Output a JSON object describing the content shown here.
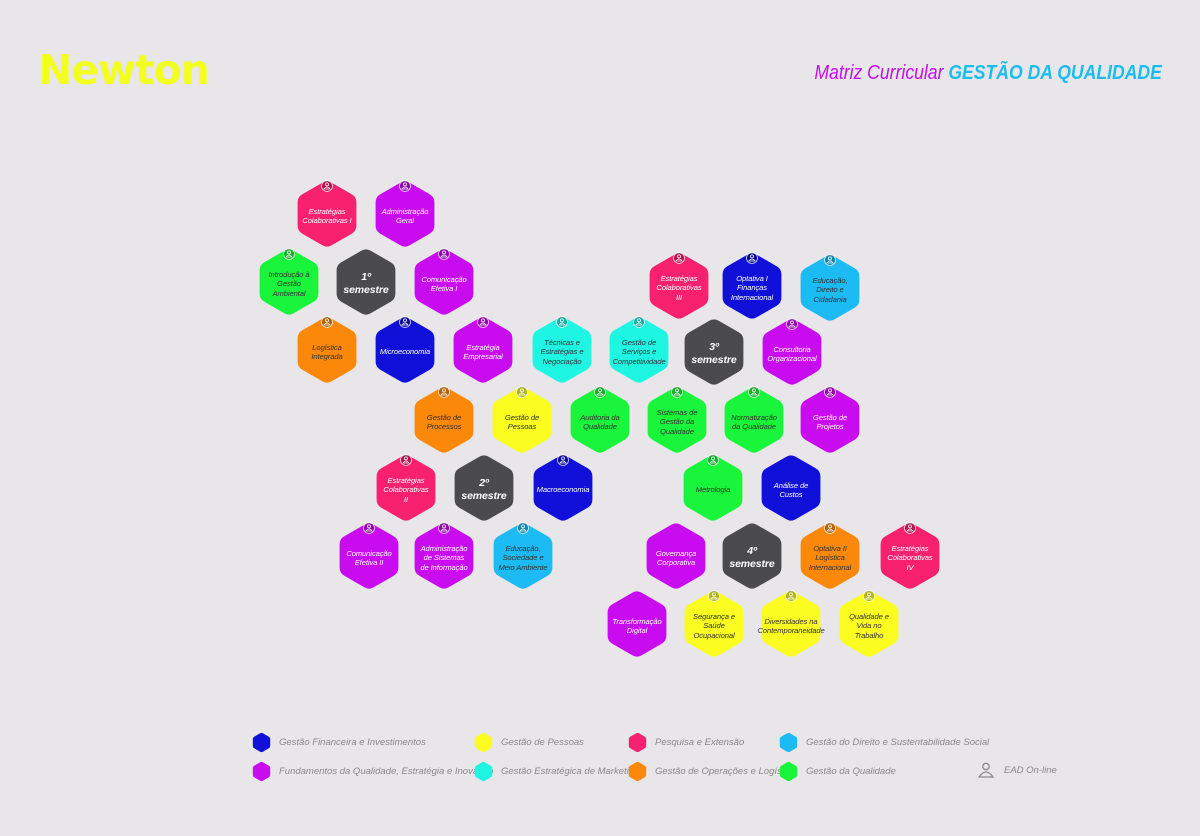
{
  "header": {
    "logo": "Newton",
    "title_prefix": "Matriz Curricular",
    "title_main": "GESTÃO DA QUALIDADE"
  },
  "colors": {
    "financeira": "#1010d8",
    "fundamentos": "#c90bf0",
    "pessoas": "#fafd1f",
    "marketing": "#1ff5e3",
    "pesquisa": "#f7216f",
    "operacoes": "#fc8809",
    "direito": "#1cbbf3",
    "qualidade": "#19f53a",
    "semestre": "#4b4b4e"
  },
  "hexes": [
    {
      "label": "Estratégias Colaborativas I",
      "cat": "pesquisa",
      "icon": true
    },
    {
      "label": "Administração Geral",
      "cat": "fundamentos",
      "icon": true
    },
    {
      "label": "Introdução à Gestão Ambiental",
      "cat": "qualidade",
      "icon": true
    },
    {
      "label": "1º semestre",
      "cat": "semestre",
      "icon": false
    },
    {
      "label": "Comunicação Efetiva I",
      "cat": "fundamentos",
      "icon": true
    },
    {
      "label": "Logística Integrada",
      "cat": "operacoes",
      "icon": true
    },
    {
      "label": "Microeconomia",
      "cat": "financeira",
      "icon": true
    },
    {
      "label": "Estratégia Empresarial",
      "cat": "fundamentos",
      "icon": true
    },
    {
      "label": "Técnicas e Estratégias e Negociação",
      "cat": "marketing",
      "icon": true
    },
    {
      "label": "Gestão de Serviços e Competitividade",
      "cat": "marketing",
      "icon": true
    },
    {
      "label": "3º semestre",
      "cat": "semestre",
      "icon": false
    },
    {
      "label": "Consultoria Organizacional",
      "cat": "fundamentos",
      "icon": true
    },
    {
      "label": "Estratégias Colaborativas III",
      "cat": "pesquisa",
      "icon": true
    },
    {
      "label": "Optativa I Finanças Internacional",
      "cat": "financeira",
      "icon": true
    },
    {
      "label": "Educação, Direito e Cidadania",
      "cat": "direito",
      "icon": true
    },
    {
      "label": "Gestão de Processos",
      "cat": "operacoes",
      "icon": true
    },
    {
      "label": "Gestão de Pessoas",
      "cat": "pessoas",
      "icon": true
    },
    {
      "label": "Auditoria da Qualidade",
      "cat": "qualidade",
      "icon": true
    },
    {
      "label": "Sistemas de Gestão da Qualidade",
      "cat": "qualidade",
      "icon": true
    },
    {
      "label": "Normatização da Qualidade",
      "cat": "qualidade",
      "icon": true
    },
    {
      "label": "Gestão de Projetos",
      "cat": "fundamentos",
      "icon": true
    },
    {
      "label": "Estratégias Colaborativas II",
      "cat": "pesquisa",
      "icon": true
    },
    {
      "label": "2º semestre",
      "cat": "semestre",
      "icon": false
    },
    {
      "label": "Macroeconomia",
      "cat": "financeira",
      "icon": true
    },
    {
      "label": "Metrologia",
      "cat": "qualidade",
      "icon": true
    },
    {
      "label": "Análise de Custos",
      "cat": "financeira",
      "icon": false
    },
    {
      "label": "Comunicação Efetiva II",
      "cat": "fundamentos",
      "icon": true
    },
    {
      "label": "Administração de Sistemas de Informação",
      "cat": "fundamentos",
      "icon": true
    },
    {
      "label": "Educação, Sociedade e Meio Ambiente",
      "cat": "direito",
      "icon": true
    },
    {
      "label": "Governança Corporativa",
      "cat": "fundamentos",
      "icon": false
    },
    {
      "label": "4º semestre",
      "cat": "semestre",
      "icon": false
    },
    {
      "label": "Optativa II Logística Internacional",
      "cat": "operacoes",
      "icon": true
    },
    {
      "label": "Estratégias Colaborativas IV",
      "cat": "pesquisa",
      "icon": true
    },
    {
      "label": "Transformação Digital",
      "cat": "fundamentos",
      "icon": false
    },
    {
      "label": "Segurança e Saúde Ocupacional",
      "cat": "pessoas",
      "icon": true
    },
    {
      "label": "Diversidades na Contemporaneidade",
      "cat": "pessoas",
      "icon": true
    },
    {
      "label": "Qualidade e Vida no Trabalho",
      "cat": "pessoas",
      "icon": true
    }
  ],
  "legend": [
    {
      "label": "Gestão Financeira e Investimentos",
      "cat": "financeira"
    },
    {
      "label": "Gestão de Pessoas",
      "cat": "pessoas"
    },
    {
      "label": "Pesquisa e Extensão",
      "cat": "pesquisa"
    },
    {
      "label": "Gestão do Direito e Sustentabilidade Social",
      "cat": "direito"
    },
    {
      "label": "Fundamentos da Qualidade, Estratégia e Inovação",
      "cat": "fundamentos"
    },
    {
      "label": "Gestão Estratégica de Marketing",
      "cat": "marketing"
    },
    {
      "label": "Gestão de Operações e Logística",
      "cat": "operacoes"
    },
    {
      "label": "Gestão da Qualidade",
      "cat": "qualidade"
    }
  ],
  "ead_label": "EAD On-line"
}
